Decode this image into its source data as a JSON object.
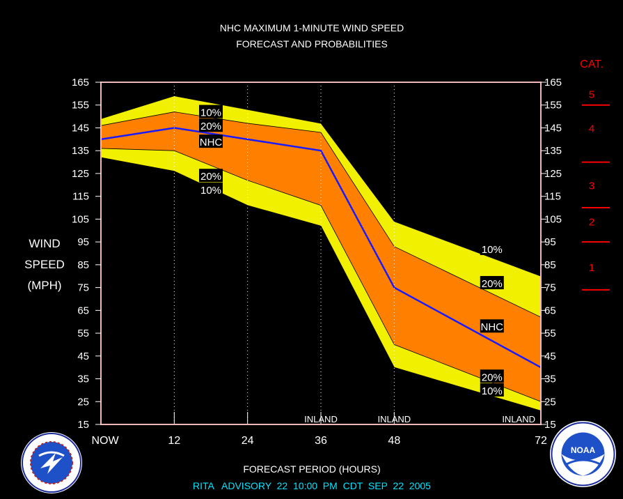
{
  "title_line1": "NHC MAXIMUM 1-MINUTE WIND SPEED",
  "title_line2": "FORECAST AND PROBABILITIES",
  "ylabel_lines": [
    "WIND",
    "SPEED",
    "(MPH)"
  ],
  "xlabel": "FORECAST PERIOD (HOURS)",
  "advisory": "RITA   ADVISORY  22  10:00  PM  CDT  SEP  22  2005",
  "category_header": "CAT.",
  "categories": [
    {
      "label": "5",
      "mid": 160
    },
    {
      "label": "4",
      "mid": 145
    },
    {
      "label": "3",
      "mid": 120
    },
    {
      "label": "2",
      "mid": 104
    },
    {
      "label": "1",
      "mid": 84
    }
  ],
  "category_boundaries": [
    155,
    130,
    110,
    95,
    74
  ],
  "colors": {
    "background": "#000000",
    "band_10": "#f0f000",
    "band_20": "#ff8000",
    "nhc_line": "#1a1aff",
    "category_text": "#ff0000",
    "advisory_text": "#00e5ff",
    "text": "#ffffff",
    "frame": "#f2b8b8"
  },
  "logos": {
    "left": "nws-seal",
    "right": "noaa-seal"
  },
  "chart_data": {
    "type": "area",
    "x": [
      0,
      12,
      24,
      36,
      48,
      72
    ],
    "x_tick_labels": [
      "NOW",
      "12",
      "24",
      "36",
      "48",
      "72"
    ],
    "xlim": [
      0,
      72
    ],
    "ylim": [
      15,
      165
    ],
    "y_ticks": [
      15,
      25,
      35,
      45,
      55,
      65,
      75,
      85,
      95,
      105,
      115,
      125,
      135,
      145,
      155,
      165
    ],
    "series": [
      {
        "name": "10%",
        "values": [
          149,
          159,
          153,
          147,
          104,
          80
        ]
      },
      {
        "name": "20%",
        "values": [
          146,
          152,
          147,
          143,
          93,
          62
        ]
      },
      {
        "name": "NHC",
        "values": [
          140,
          145,
          140,
          135,
          75,
          40
        ]
      },
      {
        "name": "20%",
        "values": [
          136,
          135,
          122,
          111,
          50,
          25
        ]
      },
      {
        "name": "10%",
        "values": [
          132,
          126,
          111,
          102,
          40,
          21
        ]
      }
    ],
    "inland_labels": [
      {
        "label": "INLAND",
        "x": 36
      },
      {
        "label": "INLAND",
        "x": 48
      },
      {
        "label": "INLAND",
        "x": 72
      }
    ],
    "series_labels_left": [
      {
        "label": "10%",
        "x": 18,
        "y": 152
      },
      {
        "label": "20%",
        "x": 18,
        "y": 146
      },
      {
        "label": "NHC",
        "x": 18,
        "y": 139
      },
      {
        "label": "20%",
        "x": 18,
        "y": 124
      },
      {
        "label": "10%",
        "x": 18,
        "y": 118
      }
    ],
    "series_labels_right": [
      {
        "label": "10%",
        "x": 64,
        "y": 92
      },
      {
        "label": "20%",
        "x": 64,
        "y": 77
      },
      {
        "label": "NHC",
        "x": 64,
        "y": 58
      },
      {
        "label": "20%",
        "x": 64,
        "y": 36
      },
      {
        "label": "10%",
        "x": 64,
        "y": 30
      }
    ]
  }
}
